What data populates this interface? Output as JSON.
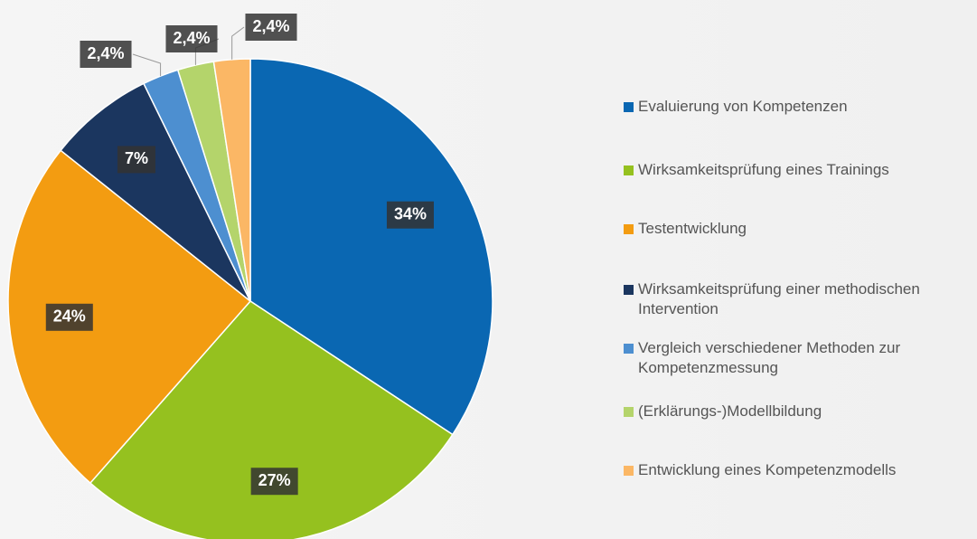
{
  "chart_data": {
    "type": "pie",
    "categories": [
      "Evaluierung von Kompetenzen",
      "Wirksamkeitsprüfung eines Trainings",
      "Testentwicklung",
      "Wirksamkeitsprüfung einer methodischen Intervention",
      "Vergleich verschiedener Methoden zur Kompetenzmessung",
      "(Erklärungs-)Modellbildung",
      "Entwicklung eines Kompetenzmodells"
    ],
    "values": [
      34,
      27,
      24,
      7,
      2.4,
      2.4,
      2.4
    ],
    "value_labels": [
      "34%",
      "27%",
      "24%",
      "7%",
      "2,4%",
      "2,4%",
      "2,4%"
    ],
    "colors": [
      "#0a67b2",
      "#95c11f",
      "#f39c11",
      "#1b365f",
      "#4d8fd0",
      "#b4d46b",
      "#fbb765"
    ],
    "legend": "right"
  }
}
